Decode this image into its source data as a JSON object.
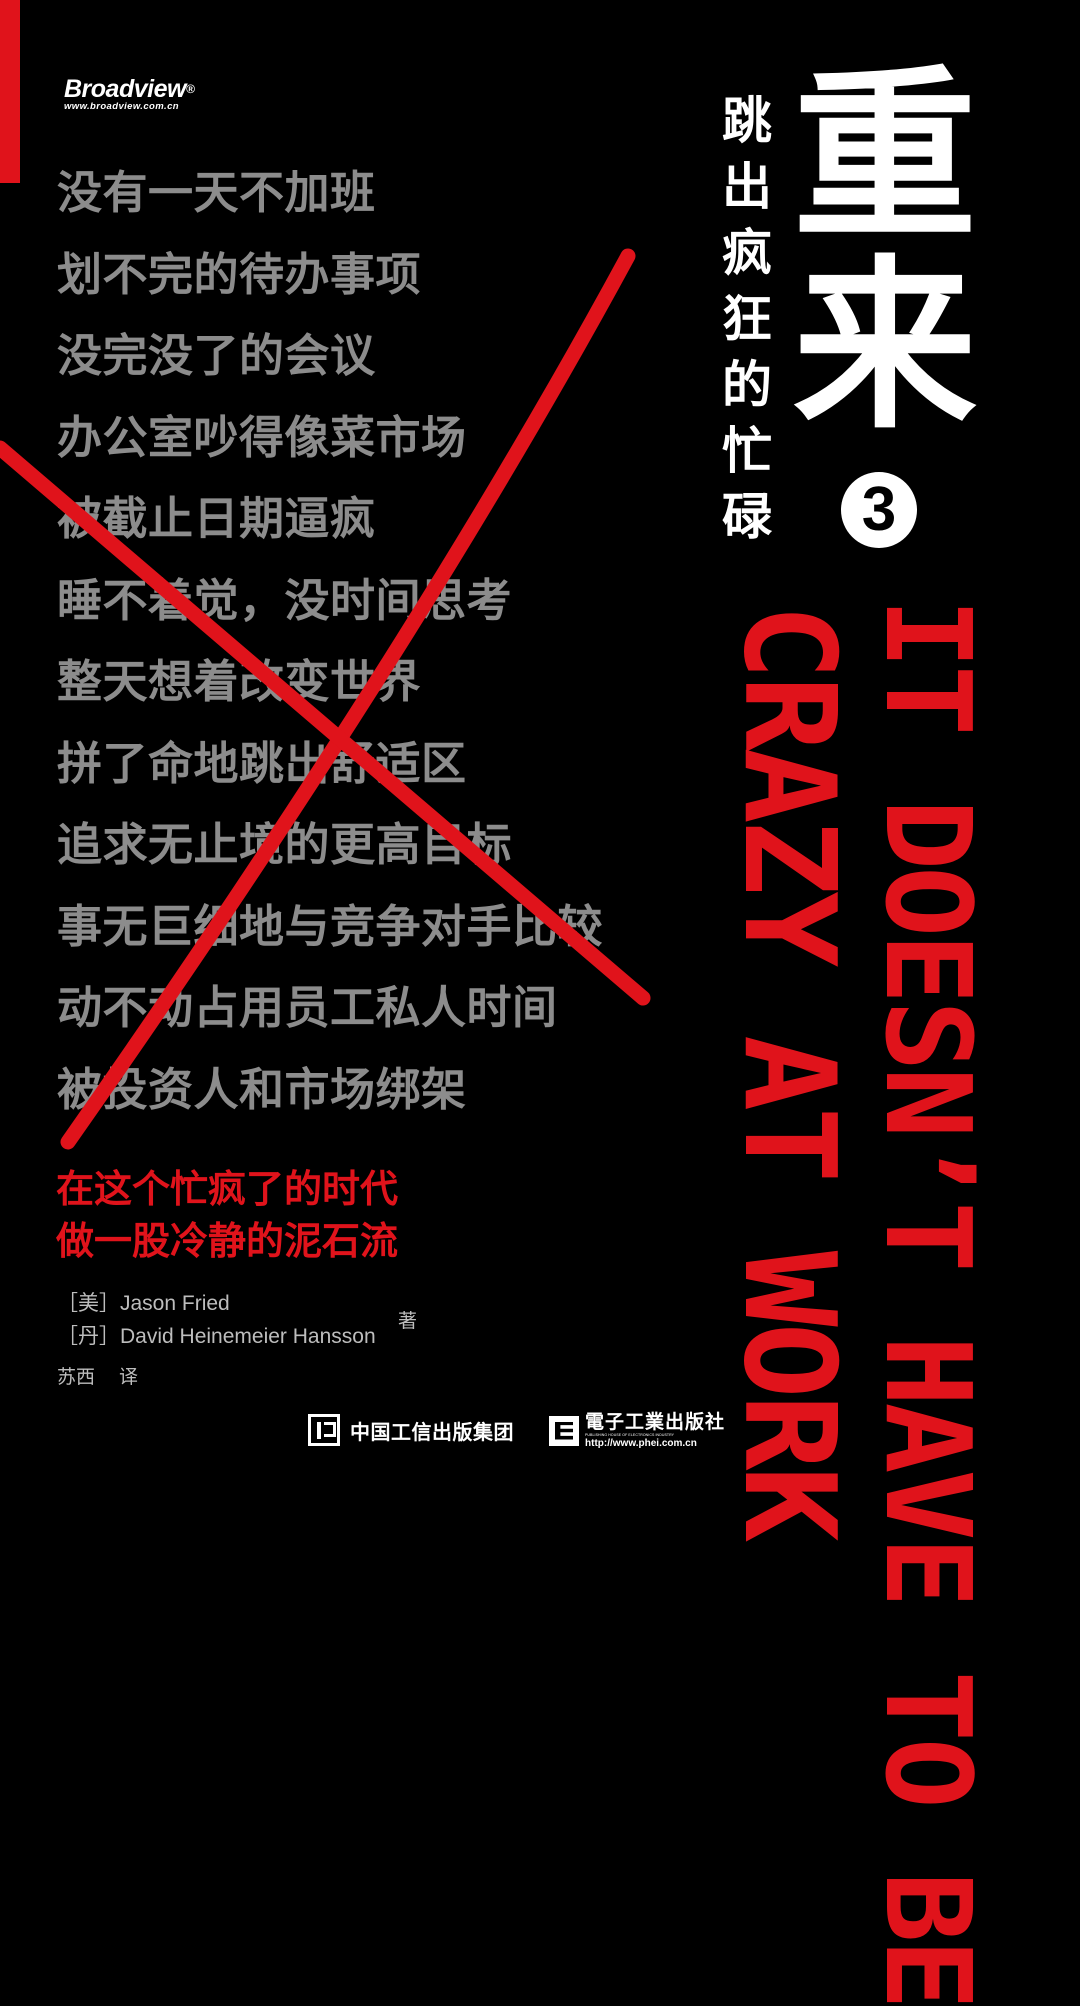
{
  "brand": {
    "name": "Broadview",
    "registered": "®",
    "url": "www.broadview.com.cn"
  },
  "complaints": [
    "没有一天不加班",
    "划不完的待办事项",
    "没完没了的会议",
    "办公室吵得像菜市场",
    "被截止日期逼疯",
    "睡不着觉，没时间思考",
    "整天想着改变世界",
    "拼了命地跳出舒适区",
    "追求无止境的更高目标",
    "事无巨细地与竞争对手比较",
    "动不动占用员工私人时间",
    "被投资人和市场绑架"
  ],
  "subtitle": [
    "跳",
    "出",
    "疯",
    "狂",
    "的",
    "忙",
    "碌"
  ],
  "title": [
    "重",
    "来"
  ],
  "volume": "3",
  "english_title": {
    "line1": "IT DOESN’T HAVE TO BE",
    "line2": "CRAZY AT WORK"
  },
  "tagline": [
    "在这个忙疯了的时代",
    "做一股冷静的泥石流"
  ],
  "authors": [
    {
      "nationality": "［美］",
      "name": "Jason Fried"
    },
    {
      "nationality": "［丹］",
      "name": "David Heinemeier Hansson"
    }
  ],
  "author_role": "著",
  "translator": {
    "name": "苏西",
    "role": "译"
  },
  "publisher1": "中国工信出版集团",
  "publisher2": {
    "name": "電子工業出版社",
    "english": "PUBLISHING HOUSE OF ELECTRONICS INDUSTRY",
    "url": "http://www.phei.com.cn"
  },
  "colors": {
    "background": "#000000",
    "accent_red": "#e0131b",
    "gray_text": "#8c8c8c",
    "white": "#ffffff"
  }
}
